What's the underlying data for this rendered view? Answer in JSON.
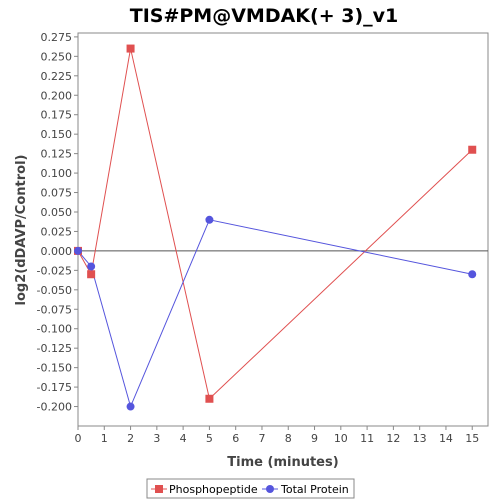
{
  "chart_data": {
    "type": "line",
    "title": "TIS#PM@VMDAK(+ 3)_v1",
    "xlabel": "Time (minutes)",
    "ylabel": "log2(dDAVP/Control)",
    "xlim": [
      0,
      15.6
    ],
    "ylim": [
      -0.225,
      0.28
    ],
    "xticks": [
      0,
      1,
      2,
      3,
      4,
      5,
      6,
      7,
      8,
      9,
      10,
      11,
      12,
      13,
      14,
      15
    ],
    "yticks": [
      -0.2,
      -0.175,
      -0.15,
      -0.125,
      -0.1,
      -0.075,
      -0.05,
      -0.025,
      0.0,
      0.025,
      0.05,
      0.075,
      0.1,
      0.125,
      0.15,
      0.175,
      0.2,
      0.225,
      0.25,
      0.275
    ],
    "ytick_labels": [
      "-0.200",
      "-0.175",
      "-0.150",
      "-0.125",
      "-0.100",
      "-0.075",
      "-0.050",
      "-0.025",
      "0.000",
      "0.025",
      "0.050",
      "0.075",
      "0.100",
      "0.125",
      "0.150",
      "0.175",
      "0.200",
      "0.225",
      "0.250",
      "0.275"
    ],
    "zero_line": true,
    "grid": false,
    "legend_position": "bottom",
    "series": [
      {
        "name": "Phosphopeptide",
        "color": "#e05050",
        "marker": "square",
        "x": [
          0,
          0.5,
          2,
          5,
          15
        ],
        "y": [
          0.0,
          -0.03,
          0.26,
          -0.19,
          0.13
        ]
      },
      {
        "name": "Total Protein",
        "color": "#5555dd",
        "marker": "circle",
        "x": [
          0,
          0.5,
          2,
          5,
          15
        ],
        "y": [
          0.0,
          -0.02,
          -0.2,
          0.04,
          -0.03
        ]
      }
    ]
  }
}
